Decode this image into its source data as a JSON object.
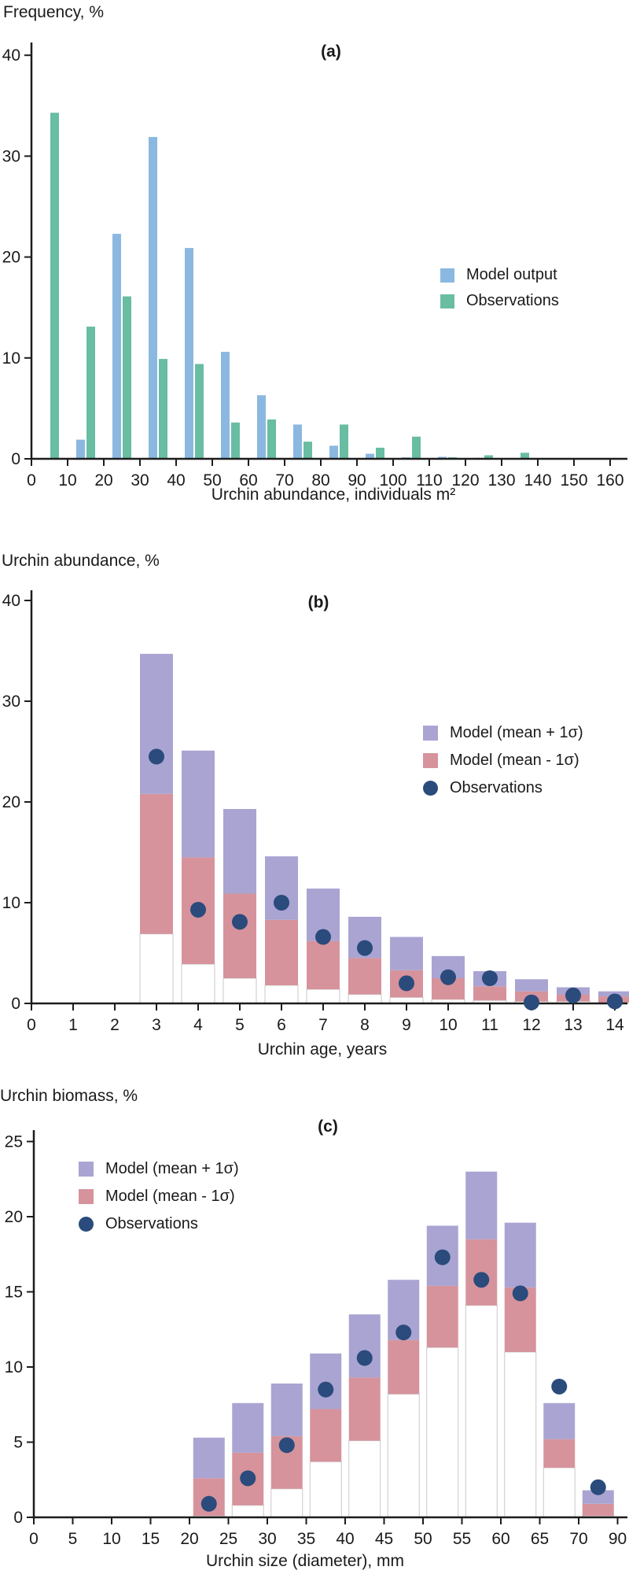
{
  "colors": {
    "model_blue": "#8bb8e0",
    "obs_green": "#69bda2",
    "model_purple": "#a9a4d2",
    "model_pink": "#d6939c",
    "obs_navy": "#2a4b7c",
    "axis": "#1c1c1c",
    "bar_outline": "#c9c9c9"
  },
  "chart_data": [
    {
      "id": "a",
      "type": "bar",
      "panel_label": "(a)",
      "title": "Frequency, %",
      "ylabel": "Frequency, %",
      "xlabel": "Urchin abundance, individuals m²",
      "xlim": [
        0,
        165
      ],
      "ylim": [
        0,
        40
      ],
      "grid": false,
      "legend_position": "middle-right",
      "x_ticks": [
        0,
        10,
        20,
        30,
        40,
        50,
        60,
        70,
        80,
        90,
        100,
        110,
        120,
        130,
        140,
        150,
        160
      ],
      "y_ticks": [
        0,
        10,
        20,
        30,
        40
      ],
      "bin_width": 10,
      "bin_centers": [
        5,
        15,
        25,
        35,
        45,
        55,
        65,
        75,
        85,
        95,
        105,
        115,
        125,
        135,
        145,
        155
      ],
      "categories": [
        "0-10",
        "10-20",
        "20-30",
        "30-40",
        "40-50",
        "50-60",
        "60-70",
        "70-80",
        "80-90",
        "90-100",
        "100-110",
        "110-120",
        "120-130",
        "130-140",
        "140-150",
        "150-160"
      ],
      "series": [
        {
          "name": "Model output",
          "color": "#8bb8e0",
          "values": [
            0,
            1.9,
            22.3,
            31.9,
            20.9,
            10.6,
            6.3,
            3.4,
            1.3,
            0.5,
            0.15,
            0.2,
            0.1,
            0,
            0,
            0
          ]
        },
        {
          "name": "Observations",
          "color": "#69bda2",
          "values": [
            34.3,
            13.1,
            16.1,
            9.9,
            9.4,
            3.6,
            3.9,
            1.7,
            3.4,
            1.1,
            2.2,
            0.15,
            0.35,
            0.6,
            0,
            0
          ]
        }
      ],
      "legend": [
        {
          "label": "Model output",
          "swatch": "square",
          "color": "#8bb8e0"
        },
        {
          "label": "Observations",
          "swatch": "square",
          "color": "#69bda2"
        }
      ]
    },
    {
      "id": "b",
      "type": "floating-bar",
      "panel_label": "(b)",
      "title": "Urchin abundance, %",
      "ylabel": "Urchin abundance, %",
      "xlabel": "Urchin age, years",
      "xlim": [
        0,
        14.6
      ],
      "ylim": [
        0,
        40
      ],
      "grid": false,
      "legend_position": "middle-right",
      "x_ticks": [
        0,
        1,
        2,
        3,
        4,
        5,
        6,
        7,
        8,
        9,
        10,
        11,
        12,
        13,
        14
      ],
      "y_ticks": [
        0,
        10,
        20,
        30,
        40
      ],
      "x": [
        3,
        4,
        5,
        6,
        7,
        8,
        9,
        10,
        11,
        12,
        13,
        14
      ],
      "series": [
        {
          "name": "Model (mean + 1σ)",
          "role": "upper",
          "color": "#a9a4d2",
          "values": [
            34.7,
            25.1,
            19.3,
            14.6,
            11.4,
            8.6,
            6.6,
            4.7,
            3.2,
            2.4,
            1.6,
            1.2
          ]
        },
        {
          "name": "Model mean",
          "role": "mean",
          "values": [
            20.8,
            14.5,
            10.9,
            8.3,
            6.2,
            4.5,
            3.3,
            2.5,
            1.7,
            1.2,
            0.9,
            0.7
          ]
        },
        {
          "name": "Model (mean - 1σ)",
          "role": "lower",
          "color": "#d6939c",
          "values": [
            6.9,
            3.9,
            2.5,
            1.8,
            1.4,
            0.9,
            0.6,
            0.4,
            0.3,
            0.2,
            0.2,
            0.1
          ]
        },
        {
          "name": "Observations",
          "role": "obs",
          "color": "#2a4b7c",
          "values": [
            24.5,
            9.3,
            8.1,
            10.0,
            6.6,
            5.5,
            2.0,
            2.6,
            2.5,
            0.1,
            0.8,
            0.2
          ]
        }
      ],
      "legend": [
        {
          "label": "Model (mean + 1σ)",
          "swatch": "square",
          "color": "#a9a4d2"
        },
        {
          "label": "Model (mean - 1σ)",
          "swatch": "square",
          "color": "#d6939c"
        },
        {
          "label": "Observations",
          "swatch": "circle",
          "color": "#2a4b7c"
        }
      ]
    },
    {
      "id": "c",
      "type": "floating-bar",
      "panel_label": "(c)",
      "title": "Urchin biomass, %",
      "ylabel": "Urchin biomass, %",
      "xlabel": "Urchin size (diameter), mm",
      "ylim": [
        0,
        26
      ],
      "grid": false,
      "legend_position": "upper-left",
      "x_tick_labels": [
        "0",
        "5",
        "10",
        "15",
        "20",
        "25",
        "30",
        "35",
        "40",
        "45",
        "50",
        "55",
        "60",
        "65",
        "70",
        "90"
      ],
      "y_ticks": [
        0,
        5,
        10,
        15,
        20,
        25
      ],
      "x": [
        22.5,
        27.5,
        32.5,
        37.5,
        42.5,
        47.5,
        52.5,
        57.5,
        62.5,
        67.5,
        72.5
      ],
      "series": [
        {
          "name": "Model (mean + 1σ)",
          "role": "upper",
          "color": "#a9a4d2",
          "values": [
            5.3,
            7.6,
            8.9,
            10.9,
            13.5,
            15.8,
            19.4,
            23.0,
            19.6,
            7.6,
            1.8
          ]
        },
        {
          "name": "Model mean",
          "role": "mean",
          "values": [
            2.6,
            4.3,
            5.4,
            7.2,
            9.3,
            11.8,
            15.4,
            18.5,
            15.3,
            5.2,
            0.9
          ]
        },
        {
          "name": "Model (mean - 1σ)",
          "role": "lower",
          "color": "#d6939c",
          "values": [
            0.1,
            0.8,
            1.9,
            3.7,
            5.1,
            8.2,
            11.3,
            14.1,
            11.0,
            3.3,
            0.1
          ]
        },
        {
          "name": "Observations",
          "role": "obs",
          "color": "#2a4b7c",
          "values": [
            0.9,
            2.6,
            4.8,
            8.5,
            10.6,
            12.3,
            17.3,
            15.8,
            14.9,
            8.7,
            2.0
          ]
        }
      ],
      "legend": [
        {
          "label": "Model (mean + 1σ)",
          "swatch": "square",
          "color": "#a9a4d2"
        },
        {
          "label": "Model (mean - 1σ)",
          "swatch": "square",
          "color": "#d6939c"
        },
        {
          "label": "Observations",
          "swatch": "circle",
          "color": "#2a4b7c"
        }
      ]
    }
  ]
}
